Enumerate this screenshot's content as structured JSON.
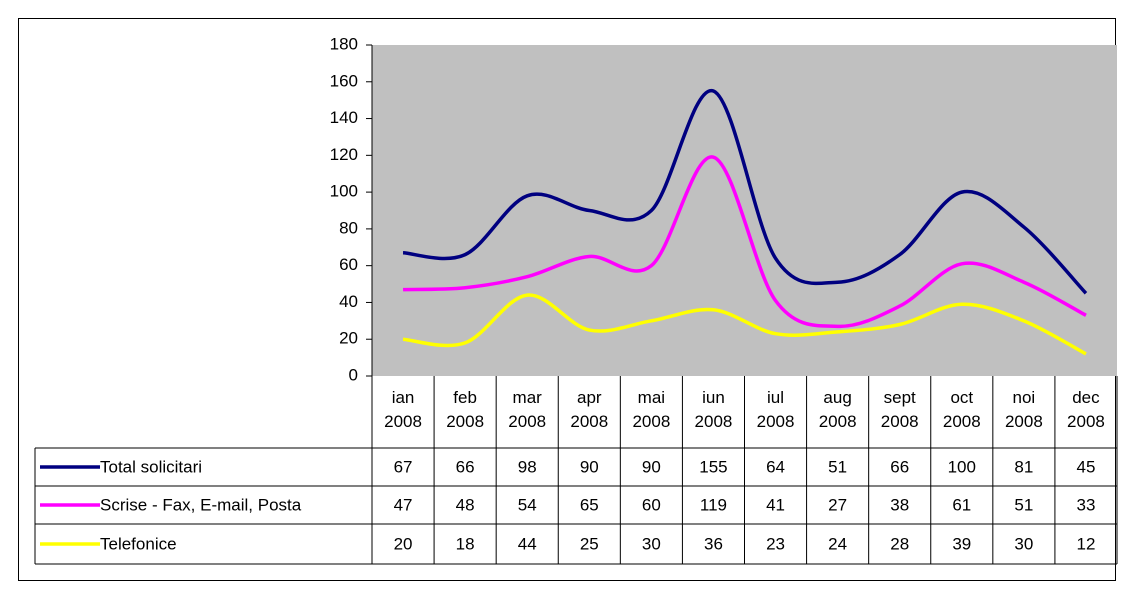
{
  "chart_data": {
    "type": "line",
    "categories": [
      "ian 2008",
      "feb 2008",
      "mar 2008",
      "apr 2008",
      "mai 2008",
      "iun 2008",
      "iul 2008",
      "aug 2008",
      "sept 2008",
      "oct 2008",
      "noi 2008",
      "dec 2008"
    ],
    "series": [
      {
        "name": "Total solicitari",
        "color": "#000080",
        "values": [
          67,
          66,
          98,
          90,
          90,
          155,
          64,
          51,
          66,
          100,
          81,
          45
        ]
      },
      {
        "name": "Scrise - Fax, E-mail, Posta",
        "color": "#ff00ff",
        "values": [
          47,
          48,
          54,
          65,
          60,
          119,
          41,
          27,
          38,
          61,
          51,
          33
        ]
      },
      {
        "name": "Telefonice",
        "color": "#ffff00",
        "values": [
          20,
          18,
          44,
          25,
          30,
          36,
          23,
          24,
          28,
          39,
          30,
          12
        ]
      }
    ],
    "ylim": [
      0,
      180
    ],
    "yticks": [
      0,
      20,
      40,
      60,
      80,
      100,
      120,
      140,
      160,
      180
    ],
    "plot_background": "#c0c0c0",
    "smooth": true,
    "data_table": true
  }
}
